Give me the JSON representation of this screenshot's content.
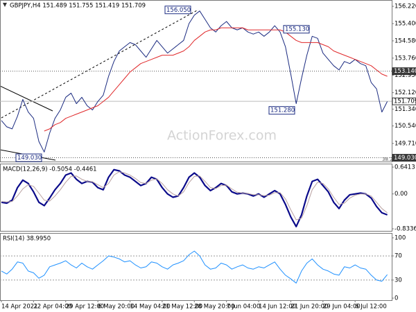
{
  "chart_data": [
    {
      "type": "line",
      "title": "GBPJPY,H4 151.489 151.755 151.419 151.709",
      "watermark": "ActionForex.com",
      "fib_label": "38.2",
      "categories": [
        "14 Apr 2021",
        null,
        null,
        null,
        null,
        null,
        "22 Apr 04:00",
        null,
        null,
        null,
        null,
        null,
        "29 Apr 12:00",
        null,
        null,
        null,
        null,
        null,
        "6 May 20:00",
        null,
        null,
        null,
        null,
        null,
        "14 May 04:00",
        null,
        null,
        null,
        null,
        null,
        "21 May 12:00",
        null,
        null,
        null,
        null,
        null,
        "28 May 20:00",
        null,
        null,
        null,
        null,
        null,
        "7 Jun 04:00",
        null,
        null,
        null,
        null,
        null,
        "14 Jun 12:00",
        null,
        null,
        null,
        null,
        null,
        "21 Jun 20:00",
        null,
        null,
        null,
        null,
        null,
        "29 Jun 04:00",
        null,
        null,
        null,
        null,
        null,
        "6 Jul 12:00",
        null,
        null,
        null,
        null,
        null,
        null
      ],
      "series": [
        {
          "color": "#1a2a80",
          "values": [
            150.8,
            150.5,
            150.4,
            151.0,
            151.8,
            151.2,
            150.9,
            149.8,
            149.3,
            150.2,
            150.9,
            151.3,
            151.9,
            152.1,
            151.6,
            151.9,
            151.5,
            151.3,
            151.7,
            152.0,
            152.9,
            153.6,
            154.1,
            154.3,
            154.5,
            154.4,
            154.1,
            153.8,
            154.2,
            154.6,
            154.3,
            154.0,
            154.2,
            154.4,
            154.6,
            155.4,
            155.8,
            156.0,
            155.6,
            155.2,
            155.0,
            155.3,
            155.5,
            155.2,
            155.1,
            155.2,
            155.0,
            154.9,
            155.0,
            154.8,
            155.0,
            155.3,
            155.0,
            154.3,
            153.0,
            151.6,
            152.8,
            153.9,
            154.8,
            154.7,
            154.0,
            153.7,
            153.4,
            153.2,
            153.6,
            153.5,
            153.7,
            153.5,
            153.4,
            152.6,
            152.3,
            151.2,
            151.7
          ]
        },
        {
          "color": "#e0282a",
          "values": [
            null,
            null,
            null,
            null,
            null,
            null,
            null,
            null,
            150.3,
            150.4,
            150.6,
            150.7,
            150.9,
            151.0,
            151.1,
            151.2,
            151.3,
            151.4,
            151.5,
            151.7,
            151.9,
            152.2,
            152.5,
            152.8,
            153.1,
            153.3,
            153.5,
            153.6,
            153.7,
            153.8,
            153.9,
            153.9,
            153.9,
            154.0,
            154.1,
            154.3,
            154.6,
            154.8,
            155.0,
            155.1,
            155.1,
            155.2,
            155.2,
            155.2,
            155.2,
            155.2,
            155.1,
            155.1,
            155.1,
            155.1,
            155.1,
            155.1,
            155.1,
            155.0,
            154.8,
            154.6,
            154.5,
            154.5,
            154.5,
            154.5,
            154.4,
            154.3,
            154.1,
            154.0,
            153.9,
            153.8,
            153.7,
            153.6,
            153.5,
            153.4,
            153.2,
            153.0,
            152.9
          ]
        }
      ],
      "ylim": [
        148.85,
        156.52
      ],
      "yticks": [
        {
          "value": 156.22,
          "label": "156.220"
        },
        {
          "value": 155.4,
          "label": "155.400"
        },
        {
          "value": 154.58,
          "label": "154.580"
        },
        {
          "value": 153.76,
          "label": "153.760"
        },
        {
          "value": 152.95,
          "label": "152.950"
        },
        {
          "value": 152.12,
          "label": "152.120"
        },
        {
          "value": 151.34,
          "label": "151.340"
        },
        {
          "value": 150.54,
          "label": "150.540"
        },
        {
          "value": 149.71,
          "label": "149.710"
        }
      ],
      "grid": false,
      "levels": [
        {
          "value": 153.14,
          "label": "153.140",
          "style": "dotted"
        },
        {
          "value": 151.709,
          "label": "151.709",
          "style": "solid"
        },
        {
          "value": 149.03,
          "label": "149.030",
          "style": "dotted"
        }
      ],
      "annotations": [
        {
          "value": 156.05,
          "label": "156.050"
        },
        {
          "value": 155.13,
          "label": "155.130"
        },
        {
          "value": 151.28,
          "label": "151.280"
        },
        {
          "value": 149.03,
          "label": "149.030"
        }
      ]
    },
    {
      "type": "line",
      "title": "MACD(12,26,9) -0.5054 -0.4461",
      "series": [
        {
          "color": "#0a0a8a",
          "values": [
            -0.2,
            -0.22,
            -0.15,
            0.15,
            0.33,
            0.25,
            0.05,
            -0.2,
            -0.28,
            -0.1,
            0.1,
            0.25,
            0.45,
            0.5,
            0.35,
            0.25,
            0.3,
            0.28,
            0.15,
            0.1,
            0.4,
            0.58,
            0.55,
            0.45,
            0.4,
            0.3,
            0.2,
            0.25,
            0.4,
            0.35,
            0.15,
            0.0,
            -0.08,
            -0.05,
            0.15,
            0.4,
            0.5,
            0.4,
            0.2,
            0.08,
            0.15,
            0.25,
            0.2,
            0.05,
            0.0,
            0.02,
            0.0,
            -0.05,
            0.0,
            -0.08,
            0.0,
            0.08,
            0.0,
            -0.25,
            -0.55,
            -0.78,
            -0.5,
            -0.05,
            0.3,
            0.35,
            0.2,
            0.05,
            -0.2,
            -0.35,
            -0.15,
            -0.02,
            0.0,
            0.02,
            0.0,
            -0.1,
            -0.3,
            -0.45,
            -0.5
          ]
        },
        {
          "color": "#b8a0a0",
          "values": [
            -0.18,
            -0.19,
            -0.18,
            -0.05,
            0.12,
            0.22,
            0.18,
            0.02,
            -0.15,
            -0.17,
            -0.05,
            0.1,
            0.28,
            0.42,
            0.43,
            0.35,
            0.3,
            0.29,
            0.22,
            0.15,
            0.25,
            0.45,
            0.53,
            0.5,
            0.45,
            0.37,
            0.27,
            0.25,
            0.33,
            0.36,
            0.25,
            0.1,
            0.0,
            -0.05,
            0.05,
            0.27,
            0.42,
            0.43,
            0.3,
            0.15,
            0.13,
            0.2,
            0.21,
            0.12,
            0.04,
            0.02,
            0.01,
            -0.02,
            -0.02,
            -0.04,
            -0.03,
            0.03,
            0.03,
            -0.12,
            -0.38,
            -0.62,
            -0.58,
            -0.28,
            0.1,
            0.28,
            0.25,
            0.12,
            -0.08,
            -0.25,
            -0.22,
            -0.1,
            -0.03,
            0.0,
            0.0,
            -0.05,
            -0.2,
            -0.35,
            -0.45
          ]
        }
      ],
      "ylim": [
        -0.8336,
        0.6413
      ],
      "yticks": [
        0.6413,
        {
          "value": 0,
          "label": "0.00"
        },
        -0.8336
      ],
      "grid": false
    },
    {
      "type": "line",
      "title": "RSI(14) 38.9950",
      "series": [
        {
          "color": "#1e90ff",
          "values": [
            45,
            40,
            48,
            60,
            58,
            45,
            42,
            33,
            38,
            52,
            55,
            58,
            62,
            55,
            50,
            58,
            52,
            48,
            55,
            62,
            70,
            68,
            65,
            60,
            62,
            55,
            50,
            52,
            60,
            58,
            52,
            48,
            55,
            58,
            62,
            72,
            78,
            70,
            55,
            48,
            50,
            58,
            55,
            48,
            52,
            55,
            50,
            48,
            52,
            50,
            55,
            60,
            48,
            38,
            32,
            25,
            45,
            58,
            65,
            55,
            48,
            45,
            40,
            38,
            52,
            50,
            55,
            50,
            48,
            38,
            30,
            28,
            39
          ]
        }
      ],
      "ylim": [
        0,
        100
      ],
      "yticks": [
        100,
        70,
        30,
        0
      ],
      "grid": true
    }
  ]
}
